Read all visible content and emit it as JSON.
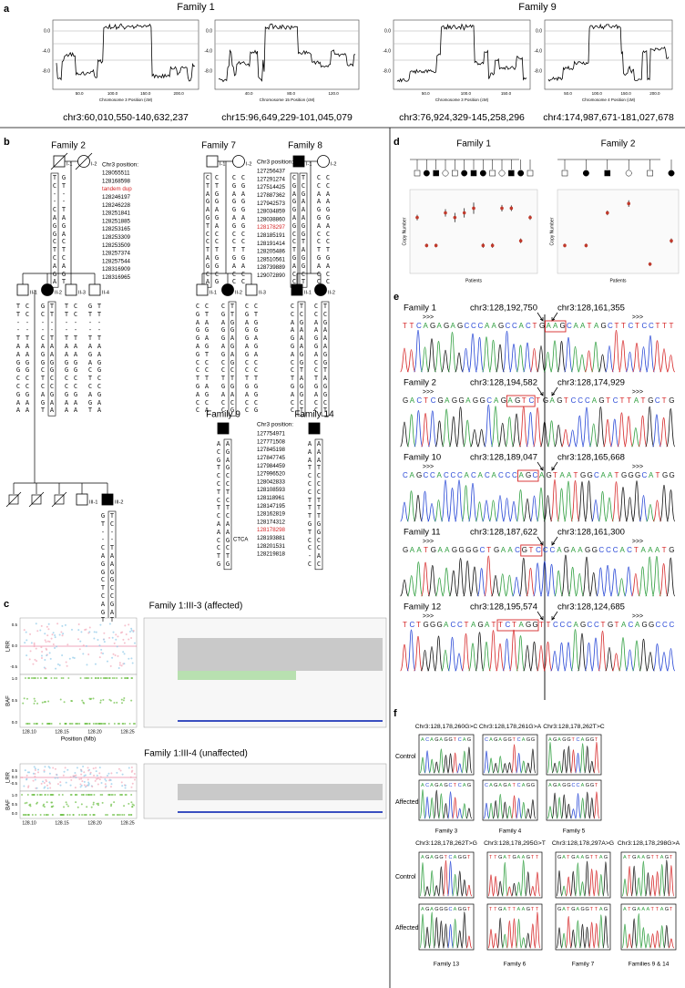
{
  "panel_a": {
    "label": "a",
    "y_ticks": [
      "0.0",
      "-4.0",
      "-8.0"
    ],
    "families": [
      {
        "name": "Family 1",
        "plots": [
          {
            "x_ticks": [
              "50.0",
              "100.0",
              "150.0",
              "200.0"
            ],
            "x_title": "Chromosome 3 Position (cM)",
            "region": "chr3:60,010,550-140,632,237"
          },
          {
            "x_ticks": [
              "40.0",
              "80.0",
              "120.0"
            ],
            "x_title": "Chromosome 15 Position (cM)",
            "region": "chr15:96,649,229-101,045,079"
          }
        ]
      },
      {
        "name": "Family 9",
        "plots": [
          {
            "x_ticks": [
              "50.0",
              "100.0",
              "150.0"
            ],
            "x_title": "Chromosome 3 Position (cM)",
            "region": "chr3:76,924,329-145,258,296"
          },
          {
            "x_ticks": [
              "50.0",
              "100.0",
              "150.0",
              "200.0"
            ],
            "x_title": "Chromosome 4 Position (cM)",
            "region": "chr4:174,987,671-181,027,678"
          }
        ]
      }
    ]
  },
  "panel_b": {
    "label": "b",
    "position_title": "Chr3 position:",
    "position_lists": [
      {
        "rows": [
          "128055511",
          "128168598",
          {
            "text": "tandem dup",
            "color": "#d62728"
          },
          "128246197",
          "128246228",
          "128251841",
          "128251885",
          "128253165",
          "128253309",
          "128253509",
          "128257374",
          "128257544",
          "128316909",
          "128316965"
        ]
      },
      {
        "rows": [
          "127256437",
          "127291274",
          "127514425",
          "127887362",
          "127942573",
          "128034859",
          "128038860",
          {
            "text": "128178297",
            "color": "#d62728"
          },
          "128185191",
          "128191414",
          "128205486",
          "128510561",
          "128739889",
          "129072890"
        ]
      },
      {
        "rows": [
          "127754971",
          "127771508",
          "127845198",
          "127847745",
          "127984459",
          "127996520",
          "128042833",
          "128108593",
          "128118961",
          "128147195",
          "128162819",
          "128174312",
          {
            "text": "128178298",
            "color": "#d62728"
          },
          "128193881",
          "128201531",
          "128219818"
        ]
      }
    ],
    "pedigrees": [
      {
        "name": "Family 2",
        "members": [
          {
            "id": "I-1",
            "sex": "male",
            "affected": false,
            "deceased": true,
            "genotype": [
              "TC--CAGGCTCAGA",
              "GT--TAGACTCAGT"
            ]
          },
          {
            "id": "I-2",
            "sex": "female",
            "affected": false,
            "deceased": true,
            "genotype": []
          },
          {
            "id": "II-1",
            "sex": "male",
            "affected": false,
            "deceased": false,
            "genotype": [
              "TT--TAAGGCCGAA",
              "CC--TAAGGCCGAA"
            ]
          },
          {
            "id": "II-2",
            "sex": "female",
            "affected": true,
            "deceased": false,
            "genotype": [
              "GC--CAGGCTCAGT",
              "TT--TAAGGCCGAA"
            ]
          },
          {
            "id": "II-3",
            "sex": "male",
            "affected": false,
            "deceased": false,
            "genotype": [
              "TT--TAAGGCCGAA",
              "CC--TAAGGCCGAA"
            ]
          },
          {
            "id": "II-4",
            "sex": "male",
            "affected": false,
            "deceased": false,
            "genotype": [
              "GT--TAGACTCAGT",
              "TT--TAAGGCCGAA"
            ]
          },
          {
            "id": "III-1",
            "sex": "male",
            "affected": false,
            "deceased": false,
            "genotype": []
          },
          {
            "id": "III-2",
            "sex": "male",
            "affected": true,
            "deceased": false,
            "genotype": [
              "GT--CAGGCTCAGT",
              "TC--TAAGGCCGAT"
            ]
          }
        ]
      },
      {
        "name": "Family 7",
        "members": [
          {
            "id": "I-1",
            "sex": "male",
            "affected": false,
            "deceased": false,
            "genotype": [
              "CTAGAGTCCTAGCA",
              "CTGGAGACCTGGCG"
            ]
          },
          {
            "id": "I-2",
            "sex": "female",
            "affected": false,
            "deceased": false,
            "genotype": [
              "CGAGGAGCCTGACC",
              "CGAGGAGCCTGACC"
            ]
          },
          {
            "id": "II-1",
            "sex": "male",
            "affected": false,
            "deceased": false,
            "genotype": [
              "CGAGGAGCCTGACC",
              "CTAGAGTCCTAGCA"
            ]
          },
          {
            "id": "II-2",
            "sex": "female",
            "affected": true,
            "deceased": false,
            "genotype": [
              "CGAGGAGCCTGACC",
              "TTGGAGAGCTGACG"
            ]
          },
          {
            "id": "II-3",
            "sex": "male",
            "affected": false,
            "deceased": false,
            "genotype": [
              "CGAGGAGCCTGACC",
              "CTGGAGACCTGGCG"
            ]
          }
        ]
      },
      {
        "name": "Family 8",
        "members": [
          {
            "id": "I-1",
            "sex": "male",
            "affected": true,
            "deceased": false,
            "genotype": [
              "CGAGGAGCCTGACC",
              "TCGAAAGGTAGGCT"
            ]
          },
          {
            "id": "I-2",
            "sex": "female",
            "affected": false,
            "deceased": false,
            "genotype": [
              "CCAAGGACCTGACC",
              "CCAAGGACCTGACC"
            ]
          },
          {
            "id": "II-1",
            "sex": "male",
            "affected": true,
            "deceased": false,
            "genotype": [
              "CCAAGGACCTGACC",
              "TCGAAAGGTAGGCT"
            ]
          },
          {
            "id": "II-2",
            "sex": "female",
            "affected": true,
            "deceased": false,
            "genotype": [
              "CCAAGGACCTGACC",
              "TCGAAAGGTAGGCT"
            ]
          }
        ]
      },
      {
        "name": "Family 9",
        "insertion": "CTCA",
        "members": [
          {
            "sex": "male",
            "affected": true,
            "deceased": false,
            "genotype": [
              "ACGTCCTCTCAACCTG",
              "AGAGCCTCTCAAGCTG"
            ]
          }
        ]
      },
      {
        "name": "Family 14",
        "members": [
          {
            "sex": "male",
            "affected": true,
            "deceased": false,
            "genotype": [
              "AAATCCCTTTGTCC-C",
              "AAATCCCTTTGGCCAC"
            ]
          }
        ]
      }
    ]
  },
  "panel_c": {
    "label": "c",
    "samples": [
      {
        "title": "Family 1:III-3 (affected)"
      },
      {
        "title": "Family 1:III-4 (unaffected)"
      }
    ],
    "lrr_label": "LRR",
    "baf_label": "BAF",
    "x_title": "Position (Mb)",
    "x_ticks": [
      "128.10",
      "128.15",
      "128.20",
      "128.25"
    ],
    "lrr_ticks": [
      "0.5",
      "0.0",
      "-0.5"
    ],
    "baf_ticks": [
      "1.0",
      "0.5",
      "0.0"
    ]
  },
  "panel_d": {
    "label": "d",
    "y_title": "Copy Number",
    "x_title": "Patients",
    "ylim": [
      1.4,
      3.2
    ],
    "families": [
      {
        "name": "Family 1",
        "copy_number": [
          2.6,
          2.0,
          2.0,
          2.7,
          2.6,
          2.7,
          2.8,
          2.0,
          2.0,
          2.8,
          2.8,
          2.1,
          2.6
        ],
        "error": [
          0.06,
          0.04,
          0.04,
          0.08,
          0.1,
          0.1,
          0.12,
          0.05,
          0.05,
          0.07,
          0.06,
          0.05,
          0.05
        ]
      },
      {
        "name": "Family 2",
        "copy_number": [
          2.0,
          2.0,
          2.7,
          2.9,
          1.6,
          2.1
        ],
        "error": [
          0.04,
          0.04,
          0.05,
          0.07,
          0.04,
          0.05
        ]
      }
    ]
  },
  "panel_e": {
    "label": "e",
    "forward_marker": ">>>",
    "rows": [
      {
        "family": "Family 1",
        "left": "chr3:128,192,750",
        "right": "chr3:128,161,355",
        "sequence": "TTCAGAGAGCCCAAGCCACTGAAGCAATAGCTTCTCCTTT"
      },
      {
        "family": "Family 2",
        "left": "chr3:128,194,582",
        "right": "chr3:128,174,929",
        "sequence": "GACTCGAGGAGGCAGAGTCTGAGTCCCAGTCTTATGCTG"
      },
      {
        "family": "Family 10",
        "left": "chr3:128,189,047",
        "right": "chr3:128,165,668",
        "sequence": "CAGCCACCCACACACCCAGCAGTAATGGCAATGGGCATGG"
      },
      {
        "family": "Family 11",
        "left": "chr3:128,187,622",
        "right": "chr3:128,161,300",
        "sequence": "GAATGAAGGGGCTGAACGTCCCAGAAGGCCCACTAAATG"
      },
      {
        "family": "Family 12",
        "left": "chr3:128,195,574",
        "right": "chr3:128,124,685",
        "sequence": "TCTGGGACCTAGATTCTAGGTTCCCAGCCTGTACAGGCCC"
      }
    ]
  },
  "panel_f": {
    "label": "f",
    "control_label": "Control",
    "affected_label": "Affected",
    "variants": [
      {
        "name": "Chr3:128,178,260G>C",
        "family": "Family 3",
        "control": "ACAGAGGTCAG",
        "affected": "ACAGAGCTCAG"
      },
      {
        "name": "Chr3:128,178,261G>A",
        "family": "Family 4",
        "control": "CAGAGGTCAGG",
        "affected": "CAGAGATCAGG"
      },
      {
        "name": "Chr3:128,178,262T>C",
        "family": "Family 5",
        "control": "AGAGGTCAGGT",
        "affected": "AGAGGCCAGGT"
      },
      {
        "name": "Chr3:128,178,262T>G",
        "family": "Family 13",
        "control": "AGAGGTCAGGT",
        "affected": "AGAGGGCAGGT"
      },
      {
        "name": "Chr3:128,178,295G>T",
        "family": "Family 6",
        "control": "TTGATGAAGTT",
        "affected": "TTGATTAAGTT"
      },
      {
        "name": "Chr3:128,178,297A>G",
        "family": "Family 7",
        "control": "GATGAAGTTAG",
        "affected": "GATGAGGTTAG"
      },
      {
        "name": "Chr3:128,178,298G>A",
        "family": "Families 9 & 14",
        "control": "ATGAAGTTAGT",
        "affected": "ATGAAATTAGT"
      }
    ]
  }
}
